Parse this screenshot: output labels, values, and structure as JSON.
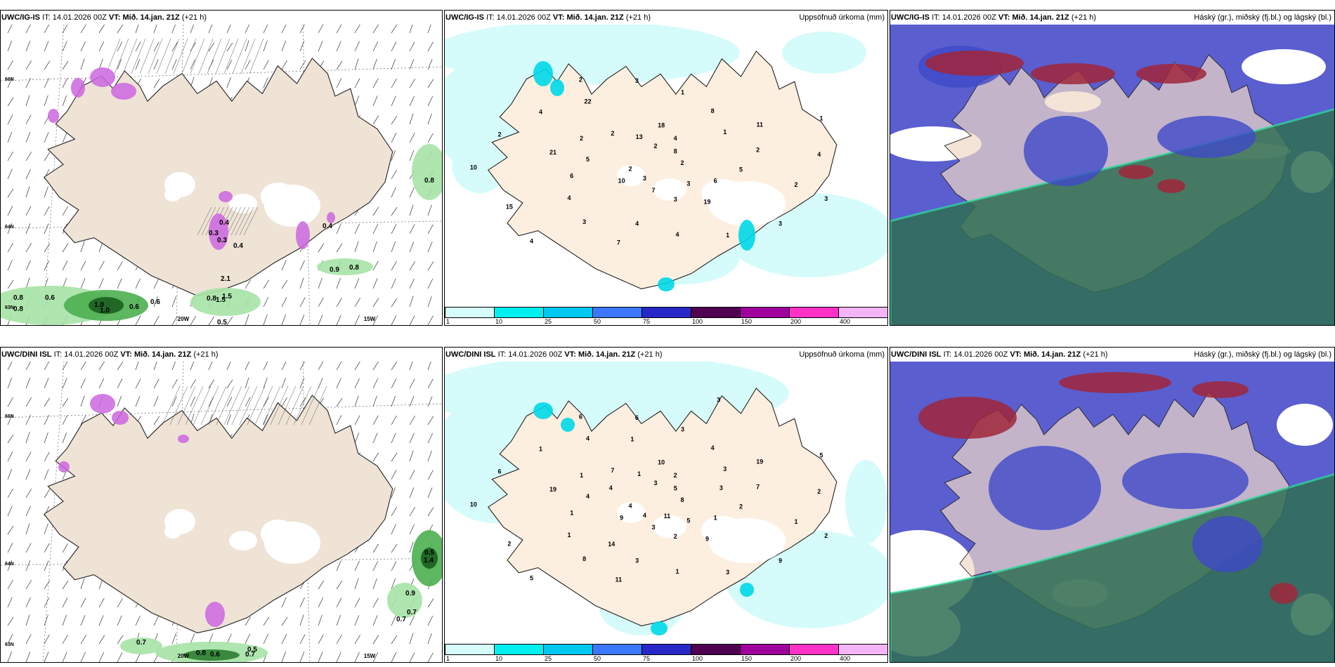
{
  "common": {
    "it_label": "IT:",
    "it_value": "14.01.2026 00Z",
    "vt_label": "VT:",
    "vt_value": "Mið. 14.jan. 21Z",
    "lead": "(+21 h)"
  },
  "rows": [
    {
      "model": "UWC/IG-IS"
    },
    {
      "model": "UWC/DINI ISL"
    }
  ],
  "precip_title": "Uppsöfnuð úrkoma (mm)",
  "cloud_title": "Háský (gr.), miðský (fj.bl.) og lágský (bl.)",
  "axis_labels": {
    "lon_20": "20W",
    "lon_15": "15W",
    "lat_66": "66N",
    "lat_64": "64N",
    "lat_63": "63N"
  },
  "colorbar": {
    "ticks": [
      "1",
      "10",
      "25",
      "50",
      "75",
      "100",
      "150",
      "200",
      "400"
    ],
    "colors": [
      "#d6fbfb",
      "#00f0f0",
      "#00c8f0",
      "#3c78ff",
      "#2828c8",
      "#500050",
      "#a0009c",
      "#ff32c8",
      "#f5b4f5"
    ]
  },
  "wind_labels_top": [
    "0.8",
    "0.6",
    "0.8",
    "0.6",
    "1.0",
    "0.6",
    "1.0",
    "0.8",
    "0.5",
    "0.8",
    "0.9",
    "0.8",
    "0.4",
    "0.3",
    "0.4",
    "0.3",
    "2.1",
    "1.5",
    "1.5",
    "0.4"
  ],
  "wind_labels_bottom": [
    "0.7",
    "0.8",
    "0.6",
    "0.5",
    "0.7",
    "0.9",
    "0.7",
    "0.7",
    "1.4",
    "0.5"
  ],
  "precip_labels_top": [
    "2",
    "10",
    "18",
    "19",
    "21",
    "11",
    "7",
    "2",
    "3",
    "2",
    "4",
    "3",
    "2",
    "2",
    "3",
    "3",
    "3",
    "10",
    "8",
    "7",
    "2",
    "5",
    "4",
    "1",
    "1",
    "2",
    "1",
    "3",
    "13",
    "6",
    "6",
    "8",
    "4",
    "4",
    "4",
    "4",
    "2",
    "3",
    "5",
    "1",
    "4",
    "22",
    "2",
    "15"
  ],
  "precip_labels_bottom": [
    "8",
    "9",
    "10",
    "9",
    "19",
    "19",
    "11",
    "6",
    "2",
    "4",
    "2",
    "2",
    "1",
    "7",
    "8",
    "6",
    "9",
    "10",
    "5",
    "3",
    "7",
    "2",
    "1",
    "3",
    "3",
    "6",
    "5",
    "4",
    "1",
    "1",
    "1",
    "4",
    "1",
    "1",
    "2",
    "5",
    "3",
    "5",
    "4",
    "3",
    "3",
    "4",
    "1",
    "2",
    "3",
    "11",
    "4",
    "3",
    "14",
    "1"
  ]
}
